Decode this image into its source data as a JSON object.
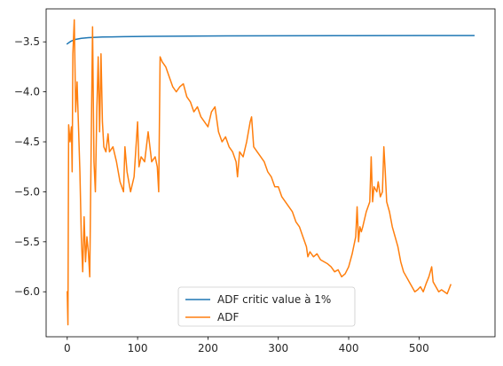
{
  "chart_data": {
    "type": "line",
    "title": "",
    "xlabel": "",
    "ylabel": "",
    "xlim": [
      -30,
      608
    ],
    "ylim": [
      -6.45,
      -3.17
    ],
    "grid": false,
    "legend_position": "lower-center",
    "x_ticks": [
      0,
      100,
      200,
      300,
      400,
      500
    ],
    "x_tick_labels": [
      "0",
      "100",
      "200",
      "300",
      "400",
      "500"
    ],
    "y_ticks": [
      -3.5,
      -4.0,
      -4.5,
      -5.0,
      -5.5,
      -6.0
    ],
    "y_tick_labels": [
      "−3.5",
      "−4.0",
      "−4.5",
      "−5.0",
      "−5.5",
      "−6.0"
    ],
    "series": [
      {
        "name": "ADF critic value à 1%",
        "color": "#1f77b4",
        "points": [
          [
            0,
            -3.52
          ],
          [
            5,
            -3.495
          ],
          [
            10,
            -3.478
          ],
          [
            20,
            -3.465
          ],
          [
            30,
            -3.458
          ],
          [
            50,
            -3.452
          ],
          [
            80,
            -3.448
          ],
          [
            120,
            -3.445
          ],
          [
            200,
            -3.441
          ],
          [
            300,
            -3.439
          ],
          [
            400,
            -3.438
          ],
          [
            500,
            -3.437
          ],
          [
            578,
            -3.437
          ]
        ]
      },
      {
        "name": "ADF",
        "color": "#ff7f0e",
        "points": [
          [
            0,
            -6.0
          ],
          [
            1,
            -6.33
          ],
          [
            2,
            -4.33
          ],
          [
            4,
            -4.5
          ],
          [
            6,
            -4.35
          ],
          [
            7,
            -4.8
          ],
          [
            8,
            -3.62
          ],
          [
            10,
            -3.28
          ],
          [
            12,
            -4.2
          ],
          [
            14,
            -3.9
          ],
          [
            18,
            -4.8
          ],
          [
            20,
            -5.45
          ],
          [
            22,
            -5.8
          ],
          [
            24,
            -5.25
          ],
          [
            26,
            -5.7
          ],
          [
            28,
            -5.45
          ],
          [
            30,
            -5.6
          ],
          [
            32,
            -5.85
          ],
          [
            34,
            -4.55
          ],
          [
            36,
            -3.35
          ],
          [
            38,
            -4.7
          ],
          [
            40,
            -5.0
          ],
          [
            42,
            -4.2
          ],
          [
            44,
            -3.65
          ],
          [
            46,
            -4.4
          ],
          [
            48,
            -3.62
          ],
          [
            50,
            -4.3
          ],
          [
            52,
            -4.55
          ],
          [
            55,
            -4.6
          ],
          [
            58,
            -4.42
          ],
          [
            60,
            -4.6
          ],
          [
            65,
            -4.55
          ],
          [
            70,
            -4.7
          ],
          [
            75,
            -4.9
          ],
          [
            80,
            -5.0
          ],
          [
            82,
            -4.55
          ],
          [
            85,
            -4.8
          ],
          [
            90,
            -5.0
          ],
          [
            95,
            -4.85
          ],
          [
            100,
            -4.3
          ],
          [
            102,
            -4.75
          ],
          [
            105,
            -4.65
          ],
          [
            110,
            -4.7
          ],
          [
            115,
            -4.4
          ],
          [
            120,
            -4.7
          ],
          [
            125,
            -4.65
          ],
          [
            128,
            -4.75
          ],
          [
            130,
            -5.0
          ],
          [
            132,
            -3.65
          ],
          [
            135,
            -3.7
          ],
          [
            140,
            -3.75
          ],
          [
            145,
            -3.85
          ],
          [
            150,
            -3.95
          ],
          [
            155,
            -4.0
          ],
          [
            160,
            -3.95
          ],
          [
            165,
            -3.92
          ],
          [
            170,
            -4.05
          ],
          [
            175,
            -4.1
          ],
          [
            180,
            -4.2
          ],
          [
            185,
            -4.15
          ],
          [
            190,
            -4.25
          ],
          [
            195,
            -4.3
          ],
          [
            200,
            -4.35
          ],
          [
            205,
            -4.2
          ],
          [
            210,
            -4.15
          ],
          [
            215,
            -4.4
          ],
          [
            220,
            -4.5
          ],
          [
            225,
            -4.45
          ],
          [
            230,
            -4.55
          ],
          [
            235,
            -4.6
          ],
          [
            240,
            -4.7
          ],
          [
            242,
            -4.85
          ],
          [
            245,
            -4.6
          ],
          [
            250,
            -4.65
          ],
          [
            255,
            -4.5
          ],
          [
            260,
            -4.3
          ],
          [
            262,
            -4.25
          ],
          [
            265,
            -4.55
          ],
          [
            270,
            -4.6
          ],
          [
            275,
            -4.65
          ],
          [
            280,
            -4.7
          ],
          [
            285,
            -4.8
          ],
          [
            290,
            -4.85
          ],
          [
            295,
            -4.95
          ],
          [
            300,
            -4.95
          ],
          [
            305,
            -5.05
          ],
          [
            310,
            -5.1
          ],
          [
            315,
            -5.15
          ],
          [
            320,
            -5.2
          ],
          [
            325,
            -5.3
          ],
          [
            330,
            -5.35
          ],
          [
            335,
            -5.45
          ],
          [
            340,
            -5.55
          ],
          [
            342,
            -5.65
          ],
          [
            345,
            -5.6
          ],
          [
            350,
            -5.65
          ],
          [
            355,
            -5.62
          ],
          [
            360,
            -5.68
          ],
          [
            365,
            -5.7
          ],
          [
            370,
            -5.72
          ],
          [
            375,
            -5.75
          ],
          [
            380,
            -5.8
          ],
          [
            385,
            -5.78
          ],
          [
            390,
            -5.85
          ],
          [
            395,
            -5.82
          ],
          [
            400,
            -5.75
          ],
          [
            405,
            -5.62
          ],
          [
            410,
            -5.45
          ],
          [
            412,
            -5.15
          ],
          [
            414,
            -5.5
          ],
          [
            416,
            -5.35
          ],
          [
            418,
            -5.4
          ],
          [
            420,
            -5.35
          ],
          [
            425,
            -5.2
          ],
          [
            430,
            -5.1
          ],
          [
            432,
            -4.65
          ],
          [
            434,
            -5.1
          ],
          [
            436,
            -4.95
          ],
          [
            440,
            -5.0
          ],
          [
            442,
            -4.9
          ],
          [
            445,
            -5.05
          ],
          [
            448,
            -5.0
          ],
          [
            450,
            -4.55
          ],
          [
            452,
            -4.8
          ],
          [
            454,
            -5.1
          ],
          [
            458,
            -5.2
          ],
          [
            462,
            -5.35
          ],
          [
            466,
            -5.45
          ],
          [
            470,
            -5.55
          ],
          [
            474,
            -5.7
          ],
          [
            478,
            -5.8
          ],
          [
            482,
            -5.85
          ],
          [
            486,
            -5.9
          ],
          [
            490,
            -5.95
          ],
          [
            494,
            -6.0
          ],
          [
            498,
            -5.98
          ],
          [
            502,
            -5.95
          ],
          [
            506,
            -6.0
          ],
          [
            510,
            -5.92
          ],
          [
            514,
            -5.85
          ],
          [
            518,
            -5.75
          ],
          [
            520,
            -5.9
          ],
          [
            524,
            -5.95
          ],
          [
            528,
            -6.0
          ],
          [
            532,
            -5.98
          ],
          [
            536,
            -6.0
          ],
          [
            540,
            -6.02
          ],
          [
            545,
            -5.93
          ]
        ]
      }
    ]
  }
}
